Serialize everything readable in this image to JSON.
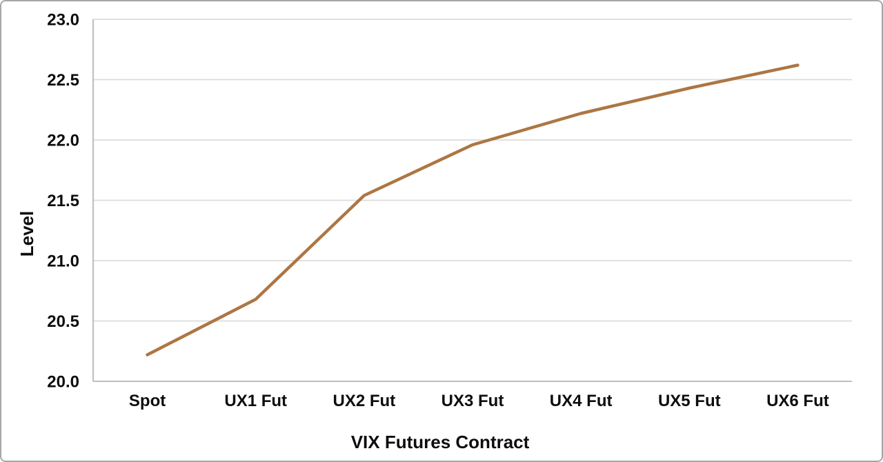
{
  "figure": {
    "background_color": "#ffffff",
    "border_color": "#a6a6a6"
  },
  "chart_data": {
    "type": "line",
    "title": "",
    "categories": [
      "Spot",
      "UX1 Fut",
      "UX2 Fut",
      "UX3 Fut",
      "UX4 Fut",
      "UX5 Fut",
      "UX6 Fut"
    ],
    "values": [
      20.22,
      20.68,
      21.54,
      21.96,
      22.22,
      22.43,
      22.62
    ],
    "xlabel": "VIX Futures Contract",
    "ylabel": "Level",
    "ylim": [
      20.0,
      23.0
    ],
    "ytick_step": 0.5,
    "ytick_labels": [
      "20.0",
      "20.5",
      "21.0",
      "21.5",
      "22.0",
      "22.5",
      "23.0"
    ],
    "grid": true,
    "legend": false,
    "line_color": "#ad7643",
    "line_width": 4.5,
    "grid_color": "#dcdcdc",
    "axis_color": "#bdbdbd",
    "text_color": "#0d0d0d"
  }
}
